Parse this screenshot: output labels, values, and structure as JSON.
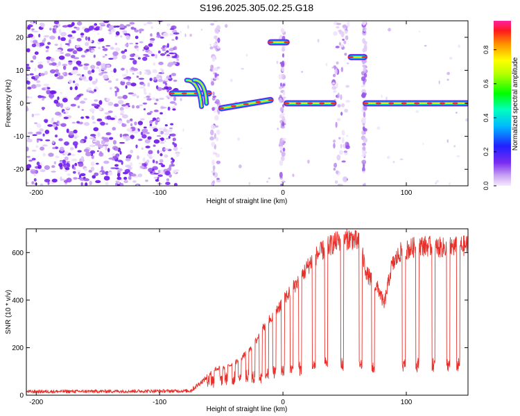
{
  "title": "S196.2025.305.02.25.G18",
  "spectrogram": {
    "type": "heatmap",
    "xlabel": "Height of straight line (km)",
    "ylabel": "Frequency (Hz)",
    "xlim": [
      -208,
      150
    ],
    "ylim": [
      -25,
      25
    ],
    "xticks": [
      -200,
      -100,
      0,
      100
    ],
    "yticks": [
      -20,
      -10,
      0,
      10,
      20
    ],
    "colorbar": {
      "label": "Normalized spectral amplitude",
      "range": [
        0,
        0.97
      ],
      "ticks": [
        0.0,
        0.2,
        0.4,
        0.6,
        0.8
      ],
      "tick_labels": [
        "0.0",
        "0.2",
        "0.4",
        "0.6",
        "0.8"
      ]
    },
    "traces": [
      {
        "x_start": -90,
        "x_end": -60,
        "freq_start": 3,
        "freq_end": 3,
        "note": "curved arcs around 2-6 Hz"
      },
      {
        "x_start": -50,
        "x_end": -10,
        "freq_start": -1.5,
        "freq_end": 1,
        "note": "rising line"
      },
      {
        "x_start": -10,
        "x_end": 3,
        "freq_start": 18.5,
        "freq_end": 18.5
      },
      {
        "x_start": 3,
        "x_end": 41,
        "freq_start": 0,
        "freq_end": 0
      },
      {
        "x_start": 55,
        "x_end": 66,
        "freq_start": 14,
        "freq_end": 14
      },
      {
        "x_start": 67,
        "x_end": 150,
        "freq_start": 0,
        "freq_end": 0
      }
    ],
    "noise_region": [
      -208,
      -85
    ]
  },
  "snr": {
    "type": "line",
    "xlabel": "Height of straight line (km)",
    "ylabel": "SNR (10 * v/v)",
    "xlim": [
      -208,
      150
    ],
    "ylim": [
      0,
      700
    ],
    "xticks": [
      -200,
      -100,
      0,
      100
    ],
    "yticks": [
      0,
      200,
      400,
      600
    ],
    "color": "#e8302a",
    "envelope": [
      [
        -208,
        15
      ],
      [
        -75,
        18
      ],
      [
        -65,
        60
      ],
      [
        -55,
        110
      ],
      [
        -45,
        120
      ],
      [
        -35,
        150
      ],
      [
        -25,
        200
      ],
      [
        -15,
        290
      ],
      [
        -5,
        360
      ],
      [
        5,
        430
      ],
      [
        15,
        500
      ],
      [
        25,
        580
      ],
      [
        35,
        620
      ],
      [
        45,
        650
      ],
      [
        55,
        660
      ],
      [
        62,
        640
      ],
      [
        68,
        510
      ],
      [
        78,
        440
      ],
      [
        82,
        380
      ],
      [
        88,
        540
      ],
      [
        95,
        600
      ],
      [
        110,
        630
      ],
      [
        130,
        620
      ],
      [
        150,
        630
      ]
    ],
    "dropouts": [
      -61,
      -57,
      -50,
      -46,
      -40,
      -35,
      -29,
      -24,
      -18,
      -13,
      -7,
      0,
      7,
      14,
      25,
      35,
      48,
      63,
      73,
      98,
      109,
      122,
      134,
      142
    ]
  }
}
